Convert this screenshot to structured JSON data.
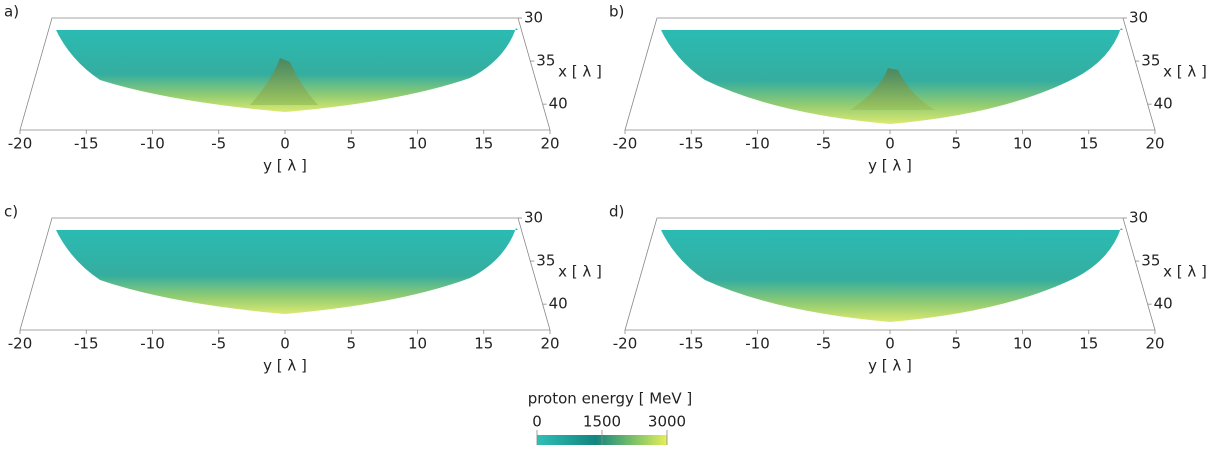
{
  "chart_data": [
    {
      "type": "surface3d",
      "label": "a)",
      "xlabel": "y [ λ ]",
      "ylabel": "x [ λ ]",
      "xlim": [
        -20,
        20
      ],
      "xticks": [
        -20,
        -15,
        -10,
        -5,
        0,
        5,
        10,
        15,
        20
      ],
      "ylim": [
        30,
        43
      ],
      "yticks": [
        30,
        35,
        40
      ]
    },
    {
      "type": "surface3d",
      "label": "b)",
      "xlabel": "y [ λ ]",
      "ylabel": "x [ λ ]",
      "xlim": [
        -20,
        20
      ],
      "xticks": [
        -20,
        -15,
        -10,
        -5,
        0,
        5,
        10,
        15,
        20
      ],
      "ylim": [
        30,
        43
      ],
      "yticks": [
        30,
        35,
        40
      ]
    },
    {
      "type": "surface3d",
      "label": "c)",
      "xlabel": "y [ λ ]",
      "ylabel": "x [ λ ]",
      "xlim": [
        -20,
        20
      ],
      "xticks": [
        -20,
        -15,
        -10,
        -5,
        0,
        5,
        10,
        15,
        20
      ],
      "ylim": [
        30,
        43
      ],
      "yticks": [
        30,
        35,
        40
      ]
    },
    {
      "type": "surface3d",
      "label": "d)",
      "xlabel": "y [ λ ]",
      "ylabel": "x [ λ ]",
      "xlim": [
        -20,
        20
      ],
      "xticks": [
        -20,
        -15,
        -10,
        -5,
        0,
        5,
        10,
        15,
        20
      ],
      "ylim": [
        30,
        43
      ],
      "yticks": [
        30,
        35,
        40
      ]
    }
  ],
  "colorbar": {
    "title": "proton energy [ MeV ]",
    "lim": [
      0,
      3000
    ],
    "ticks": [
      0,
      1500,
      3000
    ]
  }
}
